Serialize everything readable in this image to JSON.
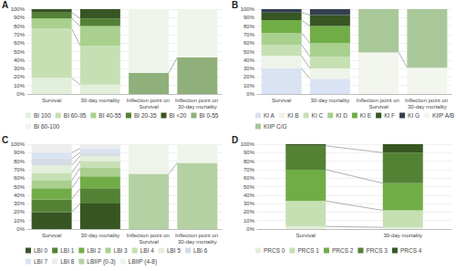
{
  "chart_data": [
    {
      "type": "bar",
      "title": "A",
      "stacked": true,
      "grid": true,
      "legend": "bottom",
      "categories": [
        "Survival",
        "30-day mortality",
        "Inflection point on Survival",
        "Inflection point on 30-day mortality"
      ],
      "ylim": [
        0,
        100
      ],
      "yticks": [
        {
          "value": 0,
          "label": "0%"
        },
        {
          "value": 10,
          "label": "10%"
        },
        {
          "value": 20,
          "label": "20%"
        },
        {
          "value": 30,
          "label": "30%"
        },
        {
          "value": 40,
          "label": "40%"
        },
        {
          "value": 50,
          "label": "50%"
        },
        {
          "value": 60,
          "label": "60%"
        },
        {
          "value": 70,
          "label": "70%"
        },
        {
          "value": 80,
          "label": "80%"
        },
        {
          "value": 90,
          "label": "90%"
        },
        {
          "value": 100,
          "label": "100%"
        }
      ],
      "series": [
        {
          "name": "BI 100",
          "color": "#e2efda",
          "values": [
            19,
            11,
            null,
            null
          ]
        },
        {
          "name": "BI 60-95",
          "color": "#c6e0b4",
          "values": [
            58,
            46,
            null,
            null
          ]
        },
        {
          "name": "BI 40-55",
          "color": "#a9d08e",
          "values": [
            12,
            23,
            null,
            null
          ]
        },
        {
          "name": "BI 20-35",
          "color": "#548235",
          "values": [
            7,
            9,
            null,
            null
          ]
        },
        {
          "name": "BI <20",
          "color": "#375623",
          "values": [
            4,
            11,
            null,
            null
          ]
        },
        {
          "name": "BI 0-55",
          "color": "#8fb07a",
          "values": [
            null,
            null,
            25,
            43
          ]
        },
        {
          "name": "BI 60-100",
          "color": "#eef4ea",
          "values": [
            null,
            null,
            75,
            57
          ]
        }
      ]
    },
    {
      "type": "bar",
      "title": "B",
      "stacked": true,
      "grid": true,
      "legend": "bottom",
      "categories": [
        "Survival",
        "30-day mortality",
        "Inflection point on Survival",
        "Inflection point on 30-day mortality"
      ],
      "ylim": [
        0,
        100
      ],
      "yticks": [
        {
          "value": 0,
          "label": "0%"
        },
        {
          "value": 10,
          "label": "10%"
        },
        {
          "value": 20,
          "label": "20%"
        },
        {
          "value": 30,
          "label": "30%"
        },
        {
          "value": 40,
          "label": "40%"
        },
        {
          "value": 50,
          "label": "50%"
        },
        {
          "value": 60,
          "label": "60%"
        },
        {
          "value": 70,
          "label": "70%"
        },
        {
          "value": 80,
          "label": "80%"
        },
        {
          "value": 90,
          "label": "90%"
        },
        {
          "value": 100,
          "label": "100%"
        }
      ],
      "series": [
        {
          "name": "KI A",
          "color": "#dae3f3",
          "values": [
            30,
            18,
            null,
            null
          ]
        },
        {
          "name": "KI B",
          "color": "#eef4ea",
          "values": [
            15,
            12,
            null,
            null
          ]
        },
        {
          "name": "KI C",
          "color": "#c6e0b4",
          "values": [
            13,
            14,
            null,
            null
          ]
        },
        {
          "name": "KI D",
          "color": "#a9d08e",
          "values": [
            14,
            16,
            null,
            null
          ]
        },
        {
          "name": "KI E",
          "color": "#70ad47",
          "values": [
            15,
            20,
            null,
            null
          ]
        },
        {
          "name": "KI F",
          "color": "#375623",
          "values": [
            9,
            13,
            null,
            null
          ]
        },
        {
          "name": "KI G",
          "color": "#333f50",
          "values": [
            4,
            7,
            null,
            null
          ]
        },
        {
          "name": "KIIP A/B",
          "color": "#f2f6ee",
          "values": [
            null,
            null,
            49,
            31
          ]
        },
        {
          "name": "KIIP C/G",
          "color": "#a9c89a",
          "values": [
            null,
            null,
            51,
            69
          ]
        }
      ]
    },
    {
      "type": "bar",
      "title": "C",
      "stacked": true,
      "grid": true,
      "legend": "bottom",
      "categories": [
        "Survival",
        "30-day mortality",
        "Inflection point on Survival",
        "Inflection point on 30-day mortality"
      ],
      "ylim": [
        0,
        100
      ],
      "yticks": [
        {
          "value": 0,
          "label": "0%"
        },
        {
          "value": 10,
          "label": "10%"
        },
        {
          "value": 20,
          "label": "20%"
        },
        {
          "value": 30,
          "label": "30%"
        },
        {
          "value": 40,
          "label": "40%"
        },
        {
          "value": 50,
          "label": "50%"
        },
        {
          "value": 60,
          "label": "60%"
        },
        {
          "value": 70,
          "label": "70%"
        },
        {
          "value": 80,
          "label": "80%"
        },
        {
          "value": 90,
          "label": "90%"
        },
        {
          "value": 100,
          "label": "100%"
        }
      ],
      "series": [
        {
          "name": "LBI 0",
          "color": "#375623",
          "values": [
            20,
            30,
            null,
            null
          ]
        },
        {
          "name": "LBI 1",
          "color": "#548235",
          "values": [
            15,
            18,
            null,
            null
          ]
        },
        {
          "name": "LBI 2",
          "color": "#70ad47",
          "values": [
            13,
            14,
            null,
            null
          ]
        },
        {
          "name": "LBI 3",
          "color": "#a9d08e",
          "values": [
            9,
            10,
            null,
            null
          ]
        },
        {
          "name": "LBI 4",
          "color": "#c6e0b4",
          "values": [
            9,
            8,
            null,
            null
          ]
        },
        {
          "name": "LBI 5",
          "color": "#e2efda",
          "values": [
            9,
            6,
            null,
            null
          ]
        },
        {
          "name": "LBI 6",
          "color": "#d6dce5",
          "values": [
            8,
            4,
            null,
            null
          ]
        },
        {
          "name": "LBI 7",
          "color": "#dae3f3",
          "values": [
            7,
            5,
            null,
            null
          ]
        },
        {
          "name": "LBI 8",
          "color": "#ededed",
          "values": [
            10,
            5,
            null,
            null
          ]
        },
        {
          "name": "LBIIP (0-3)",
          "color": "#b4d1a3",
          "values": [
            null,
            null,
            65,
            78
          ]
        },
        {
          "name": "LBIIP (4-8)",
          "color": "#eef4ea",
          "values": [
            null,
            null,
            35,
            22
          ]
        }
      ]
    },
    {
      "type": "bar",
      "title": "D",
      "stacked": true,
      "grid": true,
      "legend": "bottom",
      "categories": [
        "Survival",
        "30-day mortality"
      ],
      "ylim": [
        0,
        100
      ],
      "yticks": [
        {
          "value": 0,
          "label": "0%"
        },
        {
          "value": 10,
          "label": "10%"
        },
        {
          "value": 20,
          "label": "20%"
        },
        {
          "value": 30,
          "label": "30%"
        },
        {
          "value": 40,
          "label": "40%"
        },
        {
          "value": 50,
          "label": "50%"
        },
        {
          "value": 60,
          "label": "60%"
        },
        {
          "value": 70,
          "label": "70%"
        },
        {
          "value": 80,
          "label": "80%"
        },
        {
          "value": 90,
          "label": "90%"
        },
        {
          "value": 100,
          "label": "100%"
        }
      ],
      "series": [
        {
          "name": "PRCS 0",
          "color": "#e2efda",
          "values": [
            3,
            2
          ]
        },
        {
          "name": "PRCS 1",
          "color": "#c6e0b4",
          "values": [
            30,
            20
          ]
        },
        {
          "name": "PRCS 2",
          "color": "#70ad47",
          "values": [
            37,
            32
          ]
        },
        {
          "name": "PRCS 3",
          "color": "#548235",
          "values": [
            28,
            36
          ]
        },
        {
          "name": "PRCS 4",
          "color": "#375623",
          "values": [
            2,
            10
          ]
        }
      ]
    }
  ]
}
